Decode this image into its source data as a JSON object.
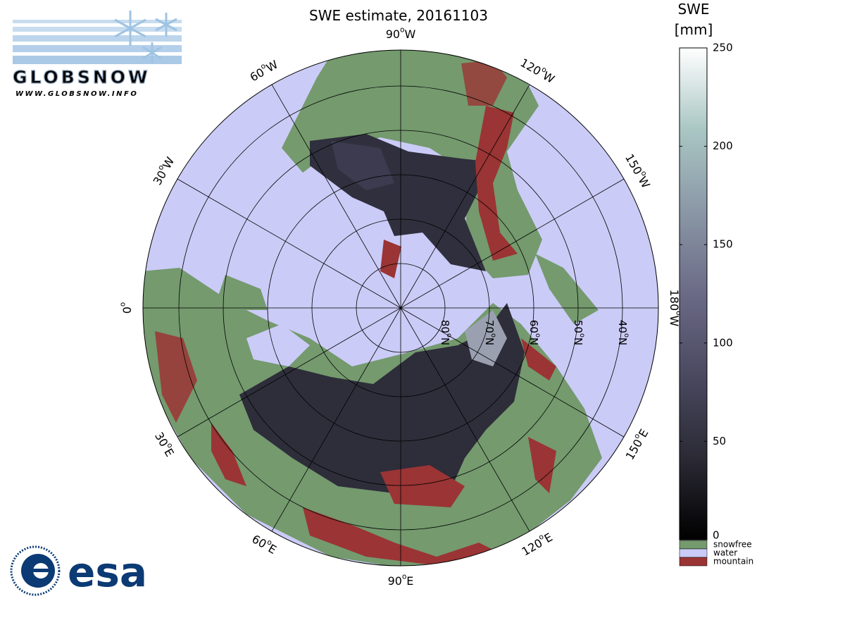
{
  "header": {
    "title": "SWE estimate, 20161103"
  },
  "logos": {
    "globsnow": "GLOBSNOW",
    "globsnow_url": "WWW.GLOBSNOW.INFO",
    "esa": "esa"
  },
  "map": {
    "center_lat": 90,
    "lat_lines": [
      {
        "lat": 80,
        "label": [
          "80",
          "o",
          "N"
        ]
      },
      {
        "lat": 70,
        "label": [
          "70",
          "o",
          "N"
        ]
      },
      {
        "lat": 60,
        "label": [
          "60",
          "o",
          "N"
        ]
      },
      {
        "lat": 50,
        "label": [
          "50",
          "o",
          "N"
        ]
      },
      {
        "lat": 40,
        "label": [
          "40",
          "o",
          "N"
        ]
      }
    ],
    "lon_lines": [
      {
        "lon": -90,
        "label": [
          "90",
          "o",
          "W"
        ]
      },
      {
        "lon": -60,
        "label": [
          "60",
          "o",
          "W"
        ]
      },
      {
        "lon": -120,
        "label": [
          "120",
          "o",
          "W"
        ]
      },
      {
        "lon": -30,
        "label": [
          "30",
          "o",
          "W"
        ]
      },
      {
        "lon": -150,
        "label": [
          "150",
          "o",
          "W"
        ]
      },
      {
        "lon": 0,
        "label": [
          "0",
          "o"
        ]
      },
      {
        "lon": -180,
        "label": [
          "180",
          "o",
          "W"
        ]
      },
      {
        "lon": 30,
        "label": [
          "30",
          "o",
          "E"
        ]
      },
      {
        "lon": 150,
        "label": [
          "150",
          "o",
          "E"
        ]
      },
      {
        "lon": 60,
        "label": [
          "60",
          "o",
          "E"
        ]
      },
      {
        "lon": 120,
        "label": [
          "120",
          "o",
          "E"
        ]
      },
      {
        "lon": 90,
        "label": [
          "90",
          "o",
          "E"
        ]
      }
    ]
  },
  "colorbar": {
    "label": [
      "SWE",
      "[mm]"
    ],
    "clim": [
      0,
      250
    ],
    "ticks": [
      0,
      50,
      100,
      150,
      200,
      250
    ],
    "colormap": [
      "#000000",
      "#2b2a35",
      "#4a4960",
      "#6b6a86",
      "#8a97a6",
      "#a9c6c3",
      "#ffffff"
    ],
    "classes": [
      {
        "name": "snowfree",
        "color": "#749a6e"
      },
      {
        "name": "water",
        "color": "#cbcbf7"
      },
      {
        "name": "mountain",
        "color": "#9b3434"
      }
    ]
  }
}
